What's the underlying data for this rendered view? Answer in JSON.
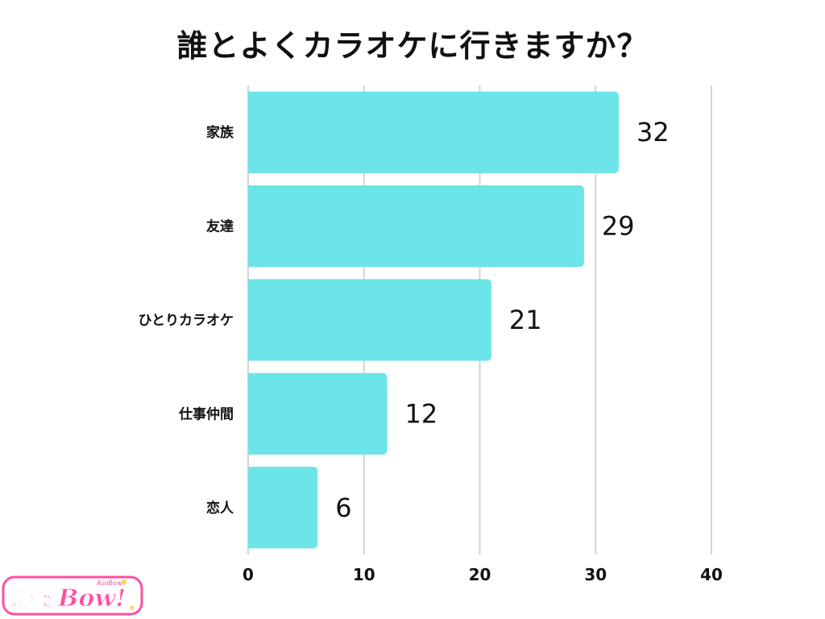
{
  "chart_data": {
    "type": "bar",
    "orientation": "horizontal",
    "title": "誰とよくカラオケに行きますか？",
    "categories": [
      "家族",
      "友達",
      "ひとりカラオケ",
      "仕事仲間",
      "恋人"
    ],
    "values": [
      32,
      29,
      21,
      12,
      6
    ],
    "xlim": [
      0,
      40
    ],
    "x_ticks": [
      0,
      10,
      20,
      30,
      40
    ],
    "xlabel": "",
    "ylabel": "",
    "grid": "vertical",
    "legend": "none",
    "bar_color": "#6ce5e8"
  },
  "logo": {
    "text": "あそBow!",
    "sub_text": "AsoBow!",
    "colors": [
      "#ff4fa3",
      "#ffffff"
    ]
  }
}
